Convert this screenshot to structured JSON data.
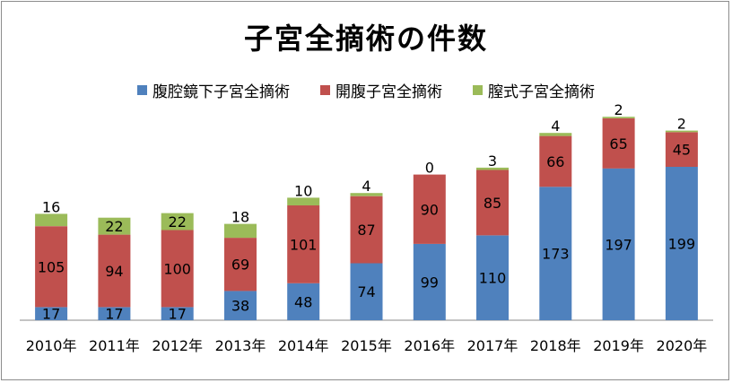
{
  "chart_data": {
    "type": "bar",
    "stacked": true,
    "title": "子宮全摘術の件数",
    "categories": [
      "2010年",
      "2011年",
      "2012年",
      "2013年",
      "2014年",
      "2015年",
      "2016年",
      "2017年",
      "2018年",
      "2019年",
      "2020年"
    ],
    "series": [
      {
        "name": "腹腔鏡下子宮全摘術",
        "color": "#4f81bd",
        "values": [
          17,
          17,
          17,
          38,
          48,
          74,
          99,
          110,
          173,
          197,
          199
        ]
      },
      {
        "name": "開腹子宮全摘術",
        "color": "#c0504d",
        "values": [
          105,
          94,
          100,
          69,
          101,
          87,
          90,
          85,
          66,
          65,
          45
        ]
      },
      {
        "name": "膣式子宮全摘術",
        "color": "#9bbb59",
        "values": [
          16,
          22,
          22,
          18,
          10,
          4,
          0,
          3,
          4,
          2,
          2
        ]
      }
    ],
    "ylim": [
      0,
      270
    ],
    "grid": false,
    "legend_position": "top"
  }
}
